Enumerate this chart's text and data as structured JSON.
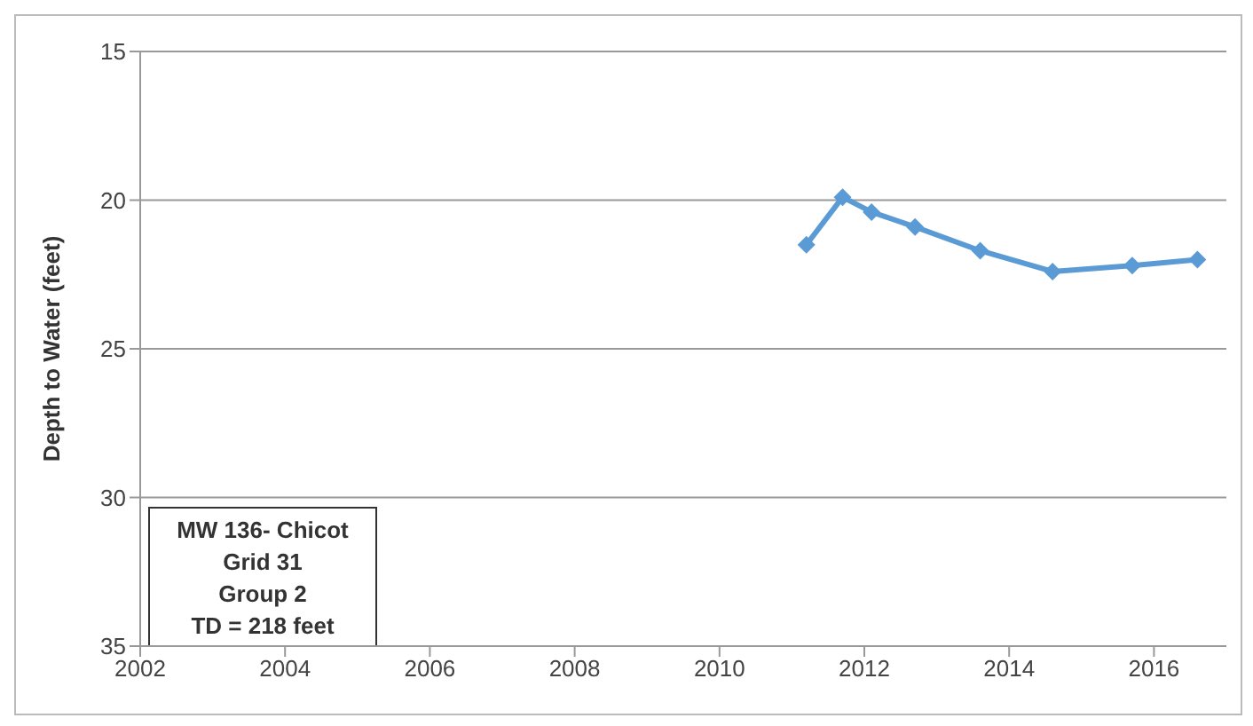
{
  "chart_data": {
    "type": "line",
    "ylabel": "Depth to Water (feet)",
    "x": [
      2011.2,
      2011.7,
      2012.1,
      2012.7,
      2013.6,
      2014.6,
      2015.7,
      2016.6
    ],
    "series": [
      {
        "color": "#5b9bd5",
        "values": [
          21.5,
          19.9,
          20.4,
          20.9,
          21.7,
          22.4,
          22.2,
          22.0
        ]
      }
    ],
    "xlim": [
      2002,
      2017
    ],
    "xticks": [
      2002,
      2004,
      2006,
      2008,
      2010,
      2012,
      2014,
      2016
    ],
    "ylim": [
      35,
      15
    ],
    "yticks": [
      15,
      20,
      25,
      30,
      35
    ],
    "grid": "y",
    "marker": "diamond",
    "line_style": "solid",
    "annotations": [
      "MW 136- Chicot",
      "Grid 31",
      "Group 2",
      "TD = 218 feet"
    ]
  }
}
